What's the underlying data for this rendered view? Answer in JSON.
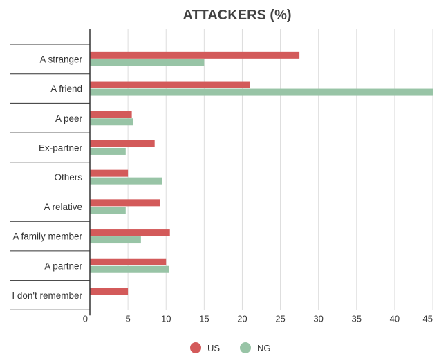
{
  "chart_data": {
    "type": "bar",
    "orientation": "horizontal",
    "title": "ATTACKERS (%)",
    "xlabel": "",
    "ylabel": "",
    "xlim": [
      0,
      45
    ],
    "ticks": [
      0,
      5,
      10,
      15,
      20,
      25,
      30,
      35,
      40,
      45
    ],
    "grid": true,
    "legend_position": "bottom-center",
    "categories": [
      "A stranger",
      "A friend",
      "A peer",
      "Ex-partner",
      "Others",
      "A relative",
      "A family member",
      "A partner",
      "I don't remember"
    ],
    "series": [
      {
        "name": "US",
        "color": "#d35a5a",
        "values": [
          27.5,
          21.0,
          5.5,
          8.5,
          5.0,
          9.2,
          10.5,
          10.0,
          5.0
        ]
      },
      {
        "name": "NG",
        "color": "#98c4a6",
        "values": [
          15.0,
          45.0,
          5.7,
          4.7,
          9.5,
          4.7,
          6.7,
          10.4,
          null
        ]
      }
    ]
  }
}
